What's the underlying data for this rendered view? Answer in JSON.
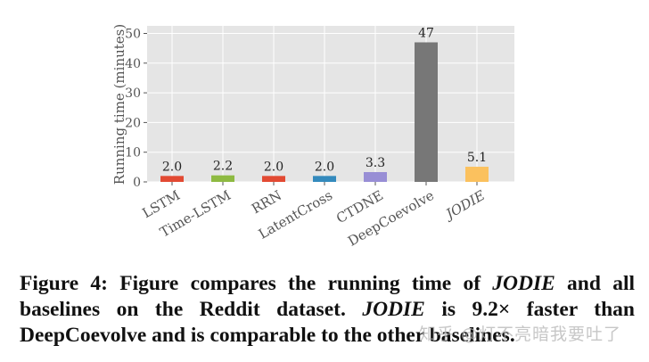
{
  "chart_data": {
    "type": "bar",
    "title": "",
    "xlabel": "",
    "ylabel": "Running time (minutes)",
    "ylim": [
      0,
      52
    ],
    "yticks": [
      0,
      10,
      20,
      30,
      40,
      50
    ],
    "grid": true,
    "legend": null,
    "categories": [
      "LSTM",
      "Time-LSTM",
      "RRN",
      "LatentCross",
      "CTDNE",
      "DeepCoevolve",
      "JODIE"
    ],
    "values": [
      2.0,
      2.2,
      2.0,
      2.0,
      3.3,
      47,
      5.1
    ],
    "value_labels": [
      "2.0",
      "2.2",
      "2.0",
      "2.0",
      "3.3",
      "47",
      "5.1"
    ],
    "colors": [
      "#e24a33",
      "#8eba42",
      "#e24a33",
      "#348abd",
      "#988ed5",
      "#777777",
      "#fbc15e"
    ],
    "italic_categories": [
      "JODIE"
    ]
  },
  "caption": {
    "prefix": "Figure 4: Figure compares the running time of ",
    "jodie1": "JODIE",
    "mid1": " and all baselines on the Reddit dataset. ",
    "jodie2": "JODIE",
    "mid2": " is 9.2× faster than DeepCoevolve and is comparable to the other baselines."
  },
  "watermark": "知乎 @灯不亮暗我要吐了"
}
